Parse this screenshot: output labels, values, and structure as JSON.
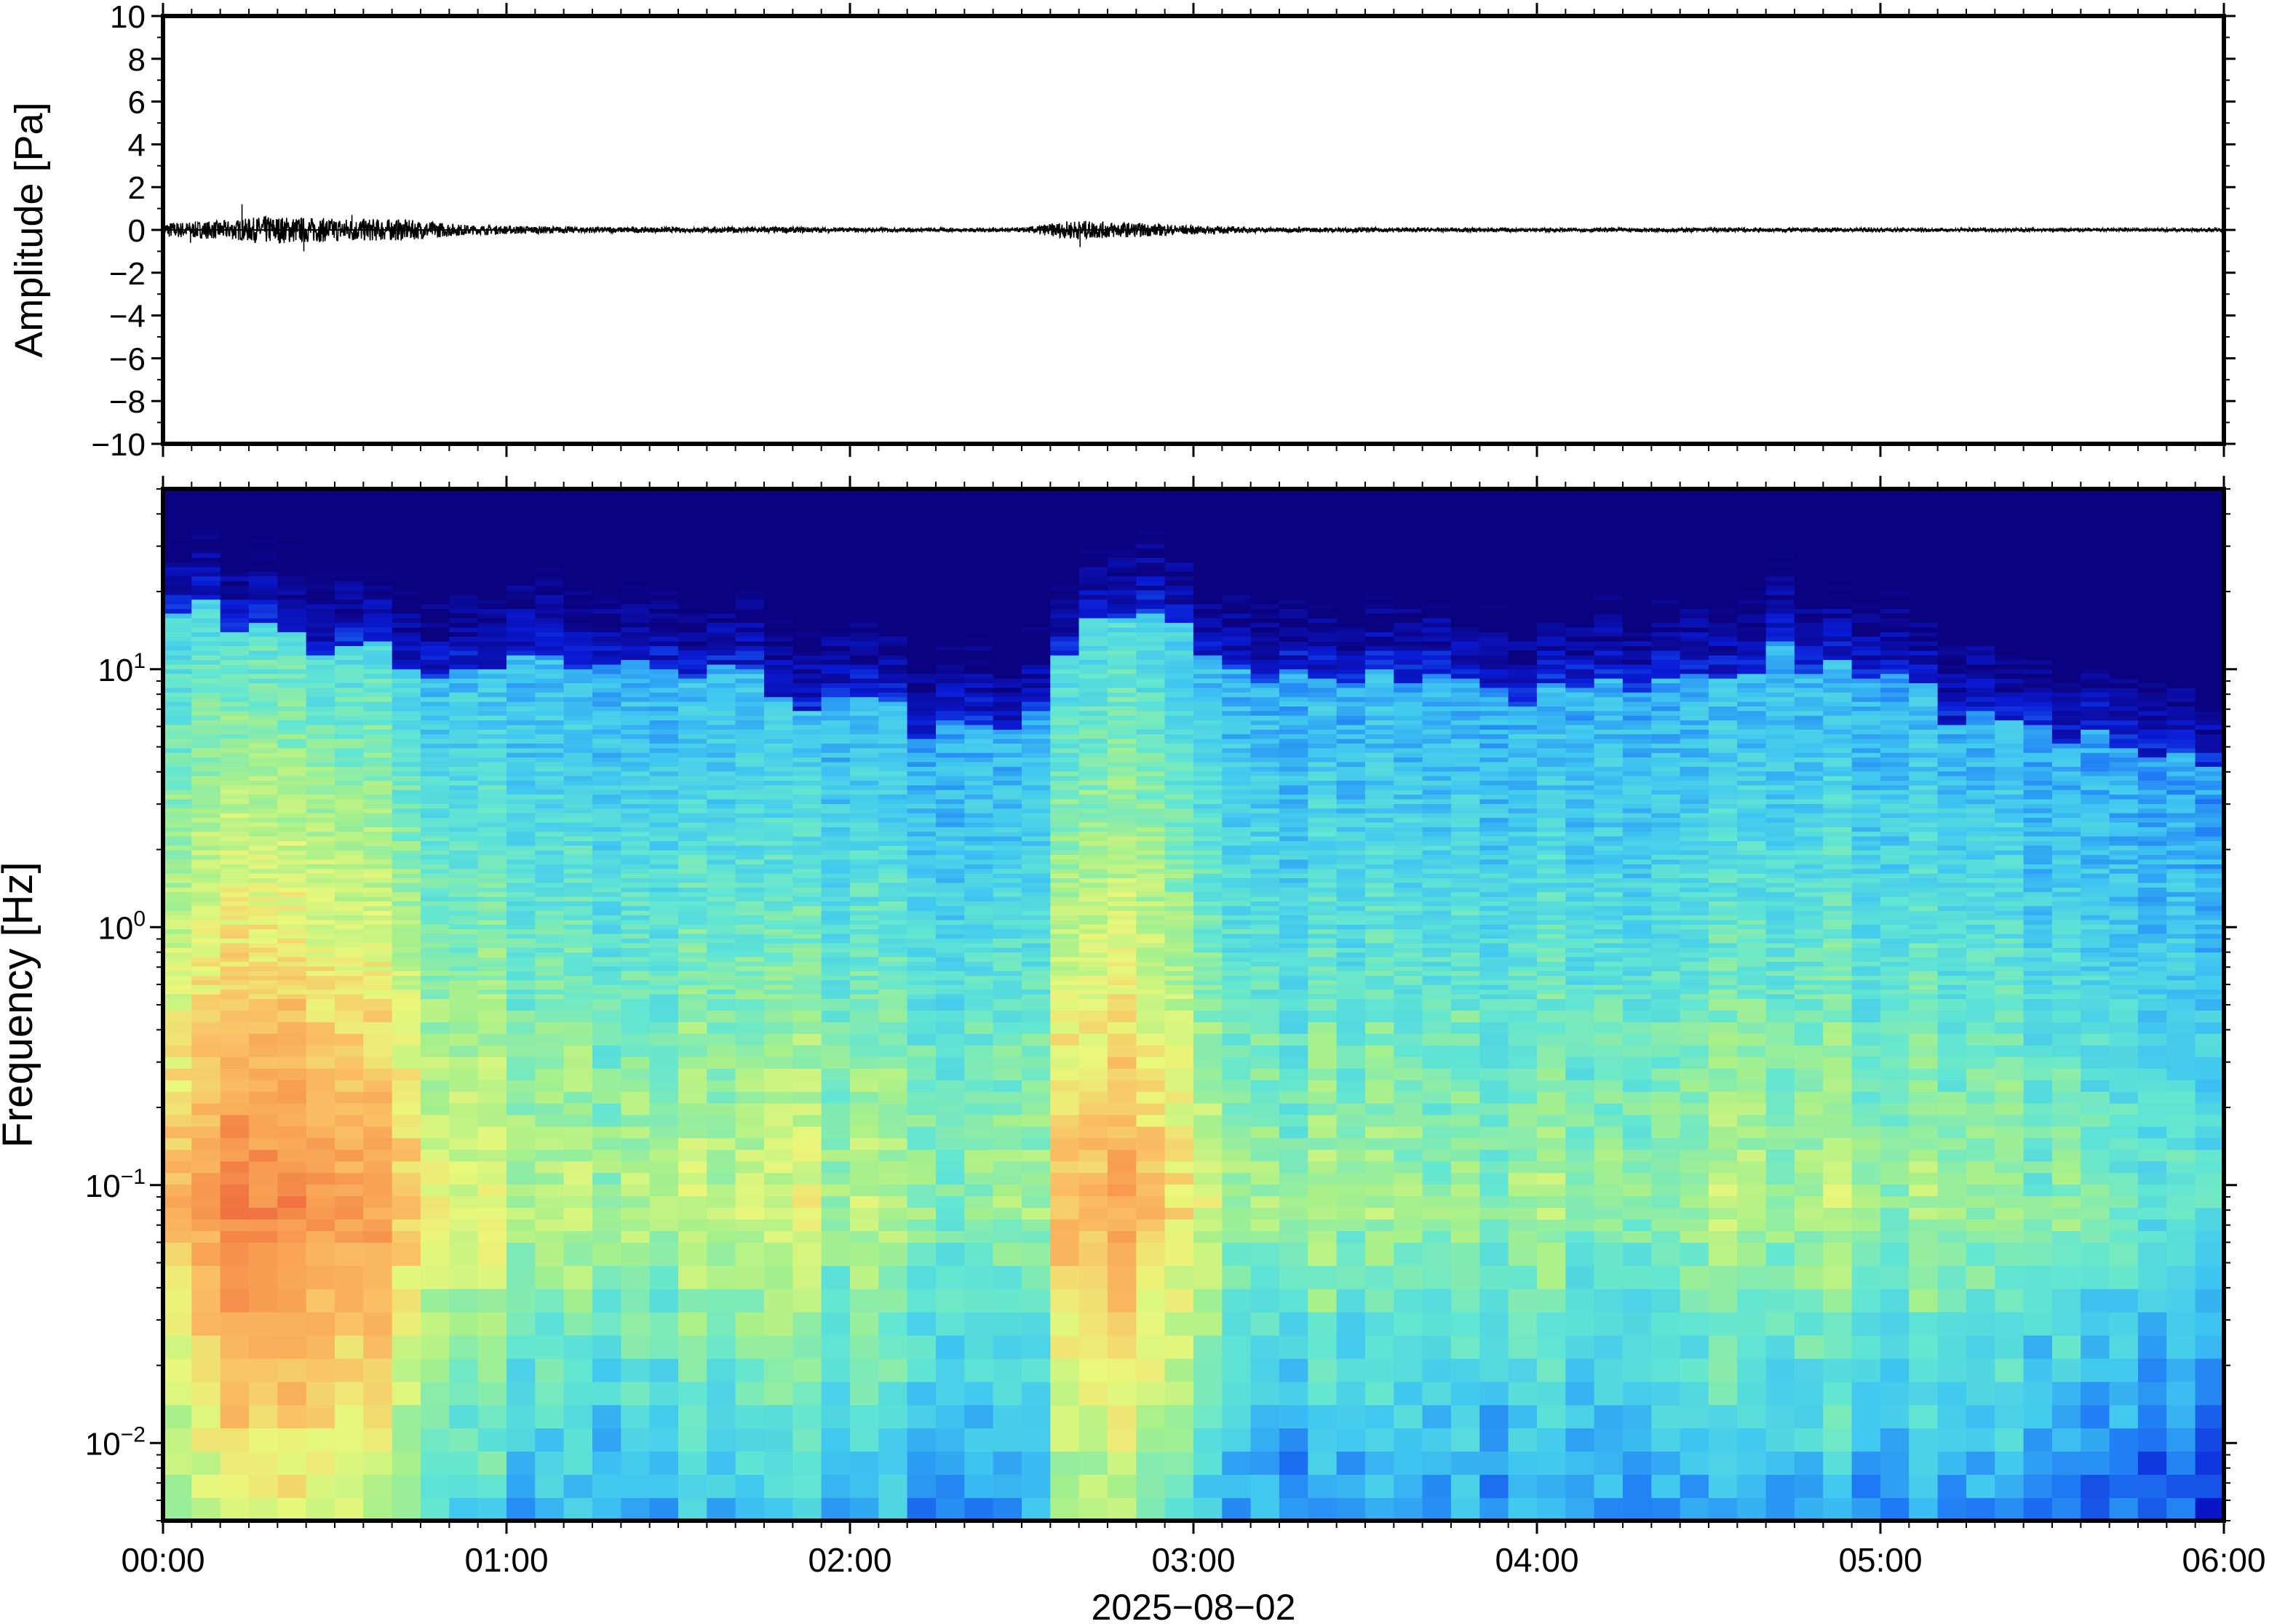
{
  "chart_data": [
    {
      "type": "line",
      "panel": "waveform",
      "ylabel": "Amplitude [Pa]",
      "ylim": [
        -10,
        10
      ],
      "yticks": [
        10,
        8,
        6,
        4,
        2,
        0,
        -2,
        -4,
        -6,
        -8,
        -10
      ],
      "ytick_labels": [
        "10",
        "8",
        "6",
        "4",
        "2",
        "0",
        "−2",
        "−4",
        "−6",
        "−8",
        "−10"
      ],
      "xlim_hours": [
        0,
        6
      ],
      "series_color": "#000000",
      "envelope_hours": [
        0,
        0.2,
        0.3,
        0.5,
        0.7,
        0.9,
        1.2,
        1.5,
        1.8,
        2.0,
        2.3,
        2.5,
        2.65,
        2.8,
        3.0,
        3.2,
        3.5,
        4.0,
        4.5,
        5.0,
        5.5,
        6.0
      ],
      "envelope_pa": [
        0.35,
        0.45,
        0.65,
        0.55,
        0.5,
        0.22,
        0.15,
        0.12,
        0.15,
        0.1,
        0.09,
        0.1,
        0.45,
        0.35,
        0.2,
        0.12,
        0.1,
        0.09,
        0.1,
        0.09,
        0.08,
        0.08
      ],
      "spikes": [
        {
          "t": 0.23,
          "a": 1.2
        },
        {
          "t": 0.41,
          "a": -1.0
        },
        {
          "t": 2.67,
          "a": -0.8
        },
        {
          "t": 0.08,
          "a": -0.6
        },
        {
          "t": 0.55,
          "a": 0.7
        }
      ]
    },
    {
      "type": "heatmap",
      "panel": "spectrogram",
      "ylabel": "Frequency [Hz]",
      "yscale": "log",
      "ylim_hz": [
        0.005,
        50
      ],
      "yticks_hz": [
        10,
        1,
        0.1,
        0.01
      ],
      "ytick_labels": [
        {
          "base": "10",
          "exp": "1"
        },
        {
          "base": "10",
          "exp": "0"
        },
        {
          "base": "10",
          "exp": "−1"
        },
        {
          "base": "10",
          "exp": "−2"
        }
      ],
      "xlabel": "2025−08−02",
      "xlim_hours": [
        0,
        6
      ],
      "xticks_hours": [
        0,
        1,
        2,
        3,
        4,
        5,
        6
      ],
      "xtick_labels": [
        "00:00",
        "01:00",
        "02:00",
        "03:00",
        "04:00",
        "05:00",
        "06:00"
      ],
      "colormap": [
        "#0b0280",
        "#0a1bd6",
        "#1f7cf5",
        "#40c8f0",
        "#63e6d2",
        "#a8f08a",
        "#e9f77a",
        "#fac064",
        "#f79a4f",
        "#f07040"
      ],
      "column_hours": 0.08333,
      "band_profile": {
        "quiet_edge_hz": [
          18,
          12,
          10,
          10,
          6,
          5,
          18,
          9,
          9,
          8,
          9,
          12,
          7,
          5,
          4
        ],
        "edge_hours": [
          0,
          0.5,
          0.9,
          1.5,
          2.2,
          2.5,
          2.8,
          3.1,
          3.5,
          4.0,
          4.5,
          4.7,
          5.2,
          5.6,
          6.0
        ],
        "peak_hz": 0.08,
        "activity_hours": [
          0,
          0.2,
          0.4,
          0.6,
          0.8,
          1.2,
          1.8,
          2.3,
          2.5,
          2.65,
          2.9,
          3.1,
          3.5,
          4.0,
          4.7,
          5.3,
          5.7,
          6.0
        ],
        "activity_level": [
          0.75,
          0.95,
          0.95,
          0.92,
          0.6,
          0.5,
          0.55,
          0.45,
          0.4,
          0.85,
          0.75,
          0.45,
          0.45,
          0.45,
          0.5,
          0.45,
          0.35,
          0.35
        ]
      }
    }
  ]
}
